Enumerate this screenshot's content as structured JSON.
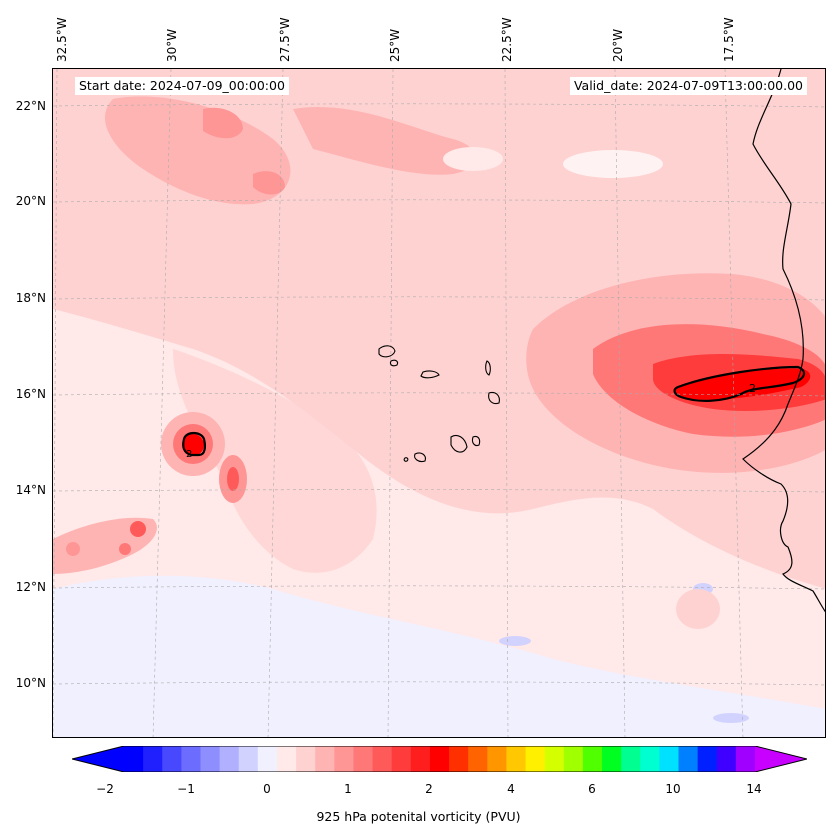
{
  "map": {
    "start_date": "Start date: 2024-07-09_00:00:00",
    "valid_date": "Valid_date: 2024-07-09T13:00:00.00",
    "lon_labels": [
      "32.5°W",
      "30°W",
      "27.5°W",
      "25°W",
      "22.5°W",
      "20°W",
      "17.5°W"
    ],
    "lat_labels": [
      "22°N",
      "20°N",
      "18°N",
      "16°N",
      "14°N",
      "12°N",
      "10°N"
    ],
    "contour_label": "2"
  },
  "colorbar": {
    "title": "925 hPa potenital vorticity (PVU)",
    "ticks": [
      "−2",
      "−1",
      "0",
      "1",
      "2",
      "4",
      "6",
      "10",
      "14"
    ],
    "colors": [
      "#0000ff",
      "#2020ff",
      "#4848ff",
      "#6c6cff",
      "#8e8eff",
      "#b0b0ff",
      "#d2d2ff",
      "#f0f0ff",
      "#ffe9e9",
      "#ffd2d2",
      "#ffb4b4",
      "#ff9696",
      "#ff7878",
      "#ff5a5a",
      "#ff3c3c",
      "#ff1e1e",
      "#ff0000",
      "#ff3000",
      "#ff6400",
      "#ff9600",
      "#ffc800",
      "#fff000",
      "#d4ff00",
      "#a0ff00",
      "#50ff00",
      "#00ff20",
      "#00ff90",
      "#00ffd0",
      "#00e0ff",
      "#0080ff",
      "#0020ff",
      "#4000ff",
      "#a000ff"
    ],
    "extend_low": "#0000ff",
    "extend_high": "#c800ff"
  }
}
